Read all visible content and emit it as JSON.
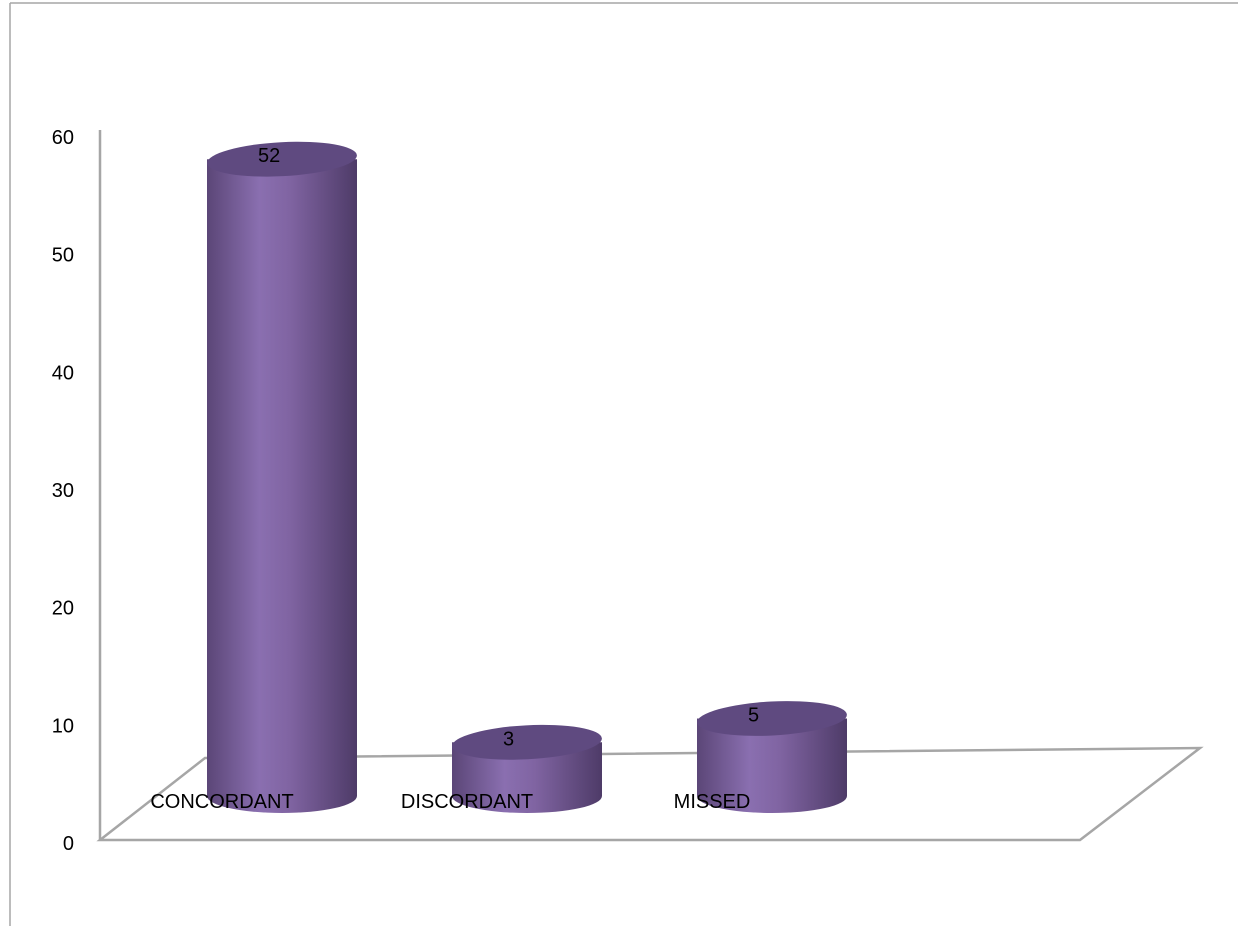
{
  "chart_data": {
    "type": "bar",
    "style": "3d-cylinder",
    "categories": [
      "CONCORDANT",
      "DISCORDANT",
      "MISSED"
    ],
    "values": [
      52,
      3,
      5
    ],
    "data_labels": [
      "52",
      "3",
      "5"
    ],
    "yticks": [
      "0",
      "10",
      "20",
      "30",
      "40",
      "50",
      "60"
    ],
    "ylim": [
      0,
      60
    ],
    "grid": false,
    "legend": "none",
    "colors": {
      "bar": "#8064A2",
      "bar_dark": "#5B4677",
      "bar_light": "#9A82BE",
      "top": "#5F4A80",
      "axis": "#A6A6A6"
    }
  }
}
